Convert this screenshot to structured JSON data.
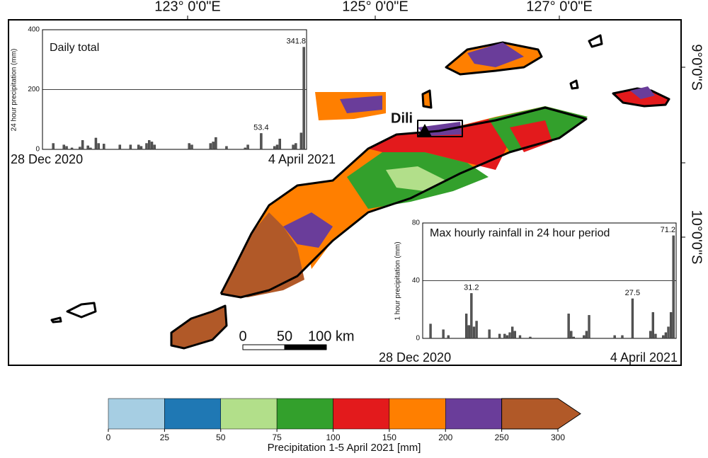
{
  "map": {
    "lon_labels": [
      "123° 0'0\"E",
      "125° 0'0\"E",
      "127° 0'0\"E"
    ],
    "lat_labels": [
      "9°0'0\"S",
      "10°0'0\"S"
    ],
    "place_label": "Dili",
    "scale_labels": [
      "0",
      "50",
      "100 km"
    ]
  },
  "daily_chart": {
    "type": "bar",
    "title": "Daily total",
    "y_label": "24 hour precipitation (mm)",
    "ylim": [
      0,
      400
    ],
    "yticks": [
      0,
      200,
      400
    ],
    "x_labels": [
      "28 Dec 2020",
      "4 April 2021"
    ],
    "color": "#555555",
    "values": [
      0,
      0,
      0,
      20,
      0,
      0,
      0,
      15,
      10,
      0,
      5,
      0,
      0,
      8,
      30,
      0,
      12,
      5,
      0,
      38,
      20,
      0,
      18,
      0,
      0,
      0,
      0,
      0,
      15,
      0,
      0,
      0,
      15,
      0,
      0,
      15,
      10,
      0,
      20,
      30,
      25,
      15,
      0,
      0,
      0,
      0,
      0,
      0,
      0,
      0,
      0,
      0,
      0,
      0,
      20,
      15,
      0,
      0,
      0,
      0,
      0,
      0,
      20,
      25,
      40,
      0,
      0,
      0,
      10,
      0,
      0,
      0,
      0,
      0,
      0,
      5,
      15,
      0,
      0,
      0,
      0,
      53.4,
      0,
      0,
      0,
      0,
      10,
      15,
      35,
      0,
      0,
      0,
      0,
      15,
      20,
      0,
      55,
      341.8
    ]
  },
  "hourly_chart": {
    "type": "bar",
    "title": "Max hourly rainfall in 24 hour period",
    "y_label": "1 hour precipitation (mm)",
    "ylim": [
      0,
      80
    ],
    "yticks": [
      0,
      40,
      80
    ],
    "x_labels": [
      "28 Dec 2020",
      "4 April 2021"
    ],
    "color": "#555555",
    "values": [
      0,
      0,
      10,
      0,
      0,
      0,
      0,
      6,
      0,
      2,
      0,
      0,
      0,
      0,
      0,
      0,
      17,
      9,
      31.2,
      8,
      12,
      0,
      0,
      0,
      0,
      6,
      0,
      0,
      0,
      3,
      0,
      3,
      2,
      4,
      8,
      5,
      0,
      2,
      0,
      0,
      0,
      1,
      0,
      0,
      0,
      0,
      0,
      0,
      0,
      0,
      0,
      0,
      0,
      0,
      0,
      0,
      17,
      5,
      1,
      0,
      0,
      0,
      2,
      5,
      16,
      0,
      0,
      0,
      0,
      0,
      0,
      0,
      0,
      0,
      2,
      0,
      0,
      2,
      0,
      0,
      0,
      27.5,
      0,
      0,
      0,
      0,
      0,
      0,
      5,
      18,
      3,
      0,
      0,
      2,
      4,
      8,
      18,
      71.2
    ]
  },
  "colorbar": {
    "bounds": [
      0,
      25,
      50,
      75,
      100,
      150,
      200,
      250,
      300
    ],
    "colors": [
      "#a6cee3",
      "#1f78b4",
      "#b2df8a",
      "#33a02c",
      "#e31a1c",
      "#ff7f00",
      "#6a3d9a",
      "#b15928"
    ],
    "label": "Precipitation 1-5 April 2021 [mm]"
  }
}
